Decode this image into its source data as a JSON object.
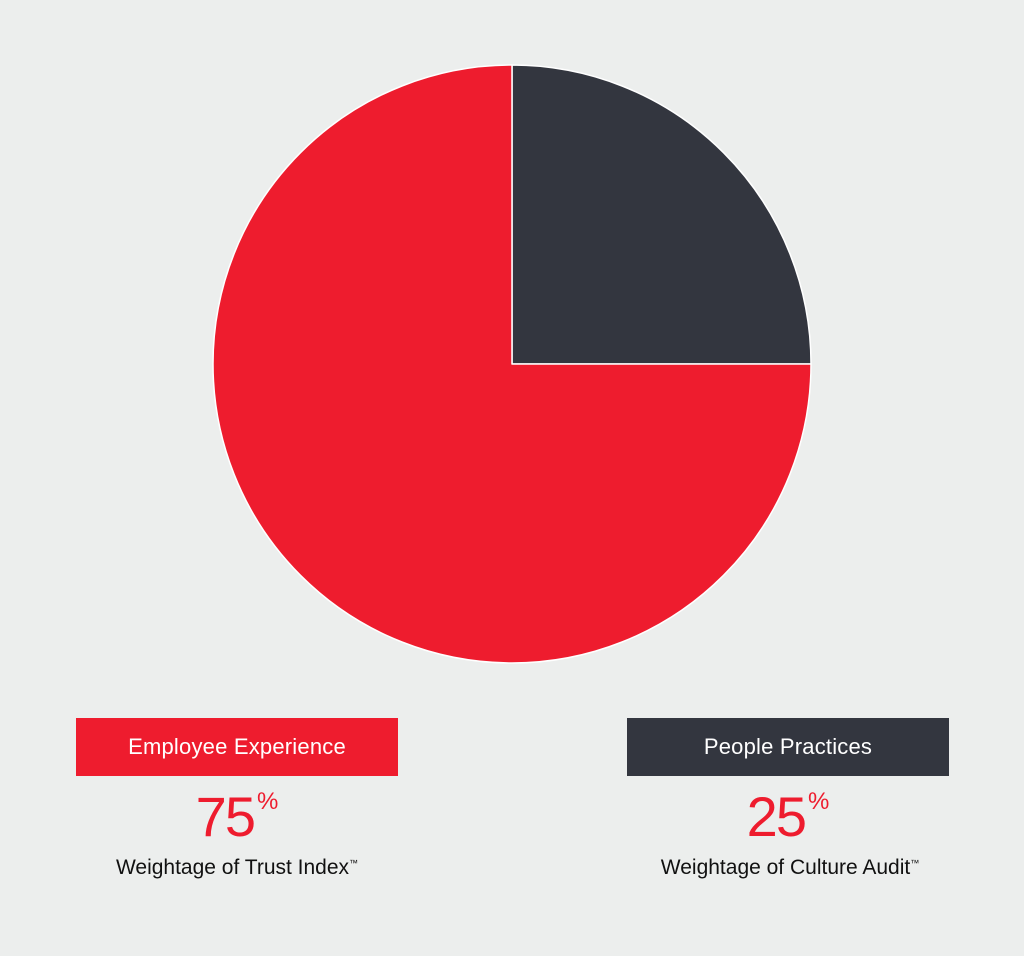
{
  "colors": {
    "background": "#eceeed",
    "red": "#ee1c2e",
    "dark": "#33363f"
  },
  "chart_data": {
    "type": "pie",
    "title": "",
    "categories": [
      "People Practices",
      "Employee Experience"
    ],
    "values": [
      25,
      75
    ],
    "colors": [
      "#33363f",
      "#ee1c2e"
    ],
    "start_angle_deg": 0,
    "direction": "clockwise from 12 o'clock",
    "legend_position": "bottom"
  },
  "legend": {
    "left": {
      "label": "Employee Experience",
      "value": "75",
      "unit": "%",
      "caption": "Weightage of Trust Index",
      "trademark": "™"
    },
    "right": {
      "label": "People Practices",
      "value": "25",
      "unit": "%",
      "caption": "Weightage of Culture Audit",
      "trademark": "™"
    }
  }
}
